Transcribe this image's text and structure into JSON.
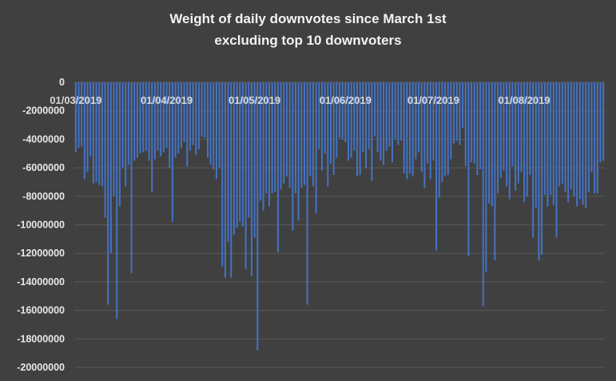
{
  "chart_data": {
    "type": "bar",
    "title": "Weight of daily downvotes since March 1st",
    "subtitle": "excluding top 10 downvoters",
    "xlabel": "",
    "ylabel": "",
    "ylim": [
      -20000000,
      0
    ],
    "yticks": [
      0,
      -2000000,
      -4000000,
      -6000000,
      -8000000,
      -10000000,
      -12000000,
      -14000000,
      -16000000,
      -18000000,
      -20000000
    ],
    "ytick_labels": [
      "0",
      "-2000000",
      "-4000000",
      "-6000000",
      "-8000000",
      "-10000000",
      "-12000000",
      "-14000000",
      "-16000000",
      "-18000000",
      "-20000000"
    ],
    "xtick_labels": [
      "01/03/2019",
      "01/04/2019",
      "01/05/2019",
      "01/06/2019",
      "01/07/2019",
      "01/08/2019"
    ],
    "xtick_positions": [
      0,
      31,
      61,
      92,
      122,
      153
    ],
    "start_date": "2019-03-01",
    "grid": true,
    "legend": "none",
    "bar_color": "#4472c4",
    "gridline_color": "#595959",
    "background_color": "#404040",
    "values": [
      -4900000,
      -4600000,
      -4500000,
      -6800000,
      -6300000,
      -5200000,
      -7100000,
      -7000000,
      -7200000,
      -7300000,
      -9500000,
      -15600000,
      -12000000,
      -8000000,
      -16600000,
      -8700000,
      -6000000,
      -7300000,
      -5800000,
      -13400000,
      -5500000,
      -5300000,
      -5000000,
      -4900000,
      -4800000,
      -5500000,
      -7700000,
      -5400000,
      -4800000,
      -5200000,
      -4900000,
      -4600000,
      -6000000,
      -9800000,
      -5300000,
      -5000000,
      -4600000,
      -4200000,
      -5900000,
      -4800000,
      -4400000,
      -5100000,
      -4700000,
      -3800000,
      -3900000,
      -5300000,
      -5800000,
      -6100000,
      -6800000,
      -6000000,
      -12900000,
      -13700000,
      -11200000,
      -13700000,
      -10700000,
      -10200000,
      -9800000,
      -10100000,
      -13100000,
      -9500000,
      -13600000,
      -10900000,
      -18800000,
      -8300000,
      -9000000,
      -7800000,
      -8700000,
      -7800000,
      -7700000,
      -11900000,
      -7500000,
      -7100000,
      -6600000,
      -7400000,
      -10400000,
      -7800000,
      -9700000,
      -7400000,
      -7200000,
      -15600000,
      -6600000,
      -7300000,
      -9200000,
      -4700000,
      -6200000,
      -5000000,
      -7300000,
      -5700000,
      -6500000,
      -5300000,
      -3900000,
      -4000000,
      -4200000,
      -5500000,
      -5300000,
      -4800000,
      -6600000,
      -6500000,
      -4900000,
      -6000000,
      -4700000,
      -6900000,
      -3800000,
      -4900000,
      -5500000,
      -5800000,
      -4800000,
      -4500000,
      -5600000,
      -4000000,
      -4400000,
      -4100000,
      -6400000,
      -6800000,
      -6400000,
      -6600000,
      -5400000,
      -4900000,
      -6300000,
      -7400000,
      -5700000,
      -6800000,
      -5500000,
      -11800000,
      -8100000,
      -7000000,
      -6600000,
      -6500000,
      -5400000,
      -4300000,
      -4100000,
      -4400000,
      -3200000,
      -5900000,
      -12200000,
      -5600000,
      -5700000,
      -6500000,
      -6100000,
      -15700000,
      -13300000,
      -8500000,
      -8700000,
      -12500000,
      -7800000,
      -6700000,
      -6200000,
      -7300000,
      -8200000,
      -5900000,
      -7600000,
      -7100000,
      -6300000,
      -8400000,
      -8000000,
      -6500000,
      -10900000,
      -8800000,
      -12500000,
      -12100000,
      -7900000,
      -8700000,
      -7900000,
      -8600000,
      -10900000,
      -7300000,
      -7100000,
      -7700000,
      -8400000,
      -7500000,
      -8000000,
      -8700000,
      -8200000,
      -8600000,
      -8800000,
      -7700000,
      -6300000,
      -7800000,
      -7800000,
      -5600000,
      -5500000
    ]
  }
}
